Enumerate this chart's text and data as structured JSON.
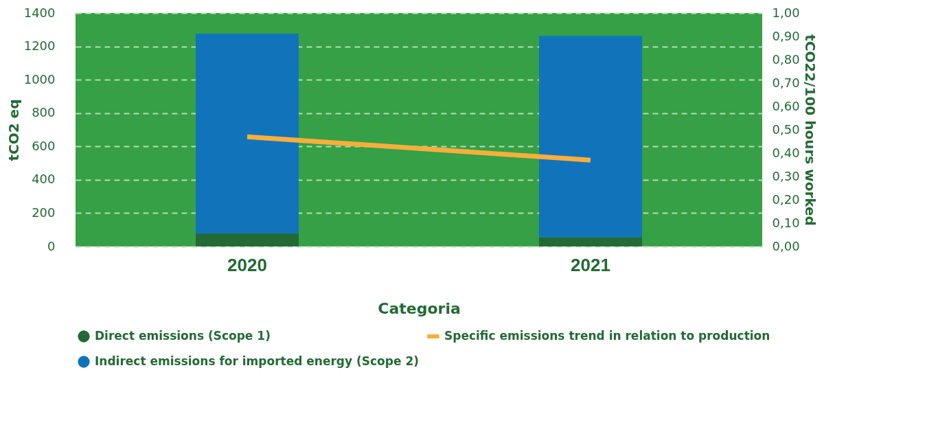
{
  "chart_data": {
    "type": "bar",
    "xlabel": "Categoria",
    "ylabel": "tCO2 eq",
    "y2label": "tCO22/100 hours worked",
    "categories": [
      "2020",
      "2021"
    ],
    "stacked": true,
    "series": [
      {
        "name": "Direct emissions (Scope 1)",
        "color": "#236a36",
        "values": [
          77,
          55
        ]
      },
      {
        "name": "Indirect emissions for imported energy (Scope 2)",
        "color": "#1174bb",
        "values": [
          1199,
          1208
        ]
      },
      {
        "name": "Specific emissions trend in relation to production",
        "type": "line",
        "axis": "y2",
        "color": "#f9ae3b",
        "values": [
          0.47,
          0.37
        ]
      }
    ],
    "ylim": [
      0,
      1400
    ],
    "yticks": [
      0,
      200,
      400,
      600,
      800,
      1000,
      1200,
      1400
    ],
    "y2lim": [
      0,
      1
    ],
    "y2ticks": [
      {
        "value": 0,
        "label": "0,00"
      },
      {
        "value": 0.1,
        "label": "0,10"
      },
      {
        "value": 0.2,
        "label": "0,20"
      },
      {
        "value": 0.3,
        "label": "0,30"
      },
      {
        "value": 0.4,
        "label": "0,40"
      },
      {
        "value": 0.5,
        "label": "0,50"
      },
      {
        "value": 0.6,
        "label": "0,60"
      },
      {
        "value": 0.7,
        "label": "0,70"
      },
      {
        "value": 0.8,
        "label": "0,80"
      },
      {
        "value": 0.9,
        "label": "0,90"
      },
      {
        "value": 1,
        "label": "1,00"
      }
    ],
    "grid": "y",
    "legend": "bottom"
  }
}
